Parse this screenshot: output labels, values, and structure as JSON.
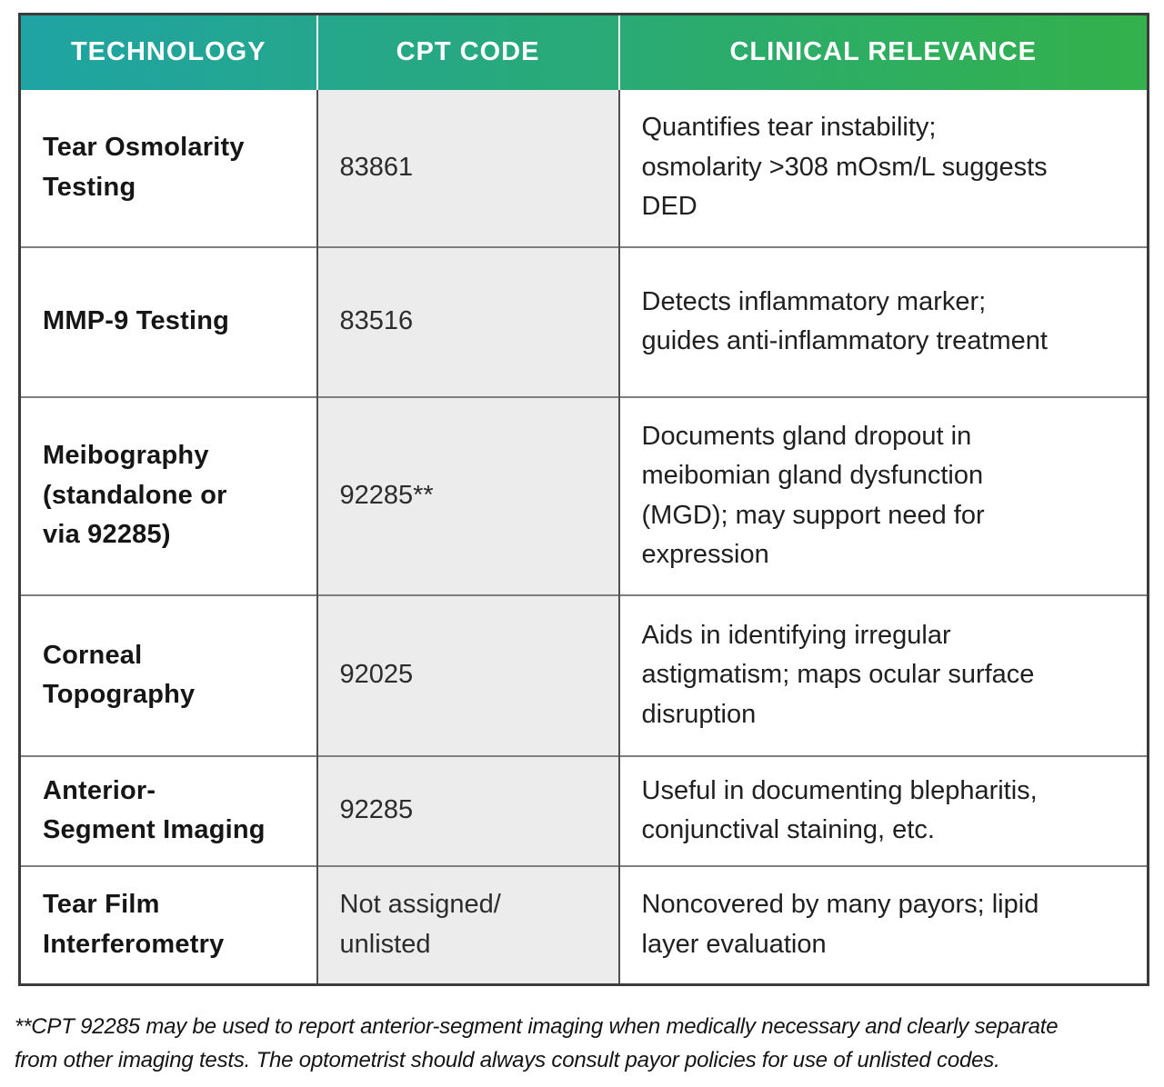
{
  "table": {
    "columns": [
      "TECHNOLOGY",
      "CPT CODE",
      "CLINICAL RELEVANCE"
    ],
    "rows": [
      {
        "technology": "Tear Osmolarity\nTesting",
        "cpt_code": "83861",
        "clinical_relevance": "Quantifies tear instability;\nosmolarity >308 mOsm/L suggests\nDED"
      },
      {
        "technology": "MMP-9 Testing",
        "cpt_code": "83516",
        "clinical_relevance": "Detects inflammatory marker;\nguides anti-inflammatory treatment"
      },
      {
        "technology": "Meibography\n(standalone or\nvia 92285)",
        "cpt_code": "92285**",
        "clinical_relevance": "Documents gland dropout in\nmeibomian gland dysfunction\n(MGD); may support need for\nexpression"
      },
      {
        "technology": "Corneal\nTopography",
        "cpt_code": "92025",
        "clinical_relevance": "Aids in identifying irregular\nastigmatism; maps ocular surface\ndisruption"
      },
      {
        "technology": "Anterior-\nSegment Imaging",
        "cpt_code": "92285",
        "clinical_relevance": "Useful in documenting blepharitis,\nconjunctival staining, etc."
      },
      {
        "technology": "Tear Film\nInterferometry",
        "cpt_code": "Not assigned/\nunlisted",
        "clinical_relevance": "Noncovered by many payors; lipid\nlayer evaluation"
      }
    ]
  },
  "footnote": "**CPT 92285 may be used to report anterior-segment imaging when medically necessary and clearly separate\nfrom other imaging tests. The optometrist should always consult payor policies for use of unlisted codes.",
  "colors": {
    "header_gradient_start": "#1fa3a4",
    "header_gradient_end": "#33b14b",
    "header_text": "#ffffff",
    "cpt_column_bg": "#ececec",
    "outer_border": "#3b3b3b",
    "row_border": "#7f7f7f",
    "column_border": "#4f4f4f",
    "body_text": "#1c1c1c"
  },
  "chart_data": {
    "type": "table",
    "title": "",
    "columns": [
      "TECHNOLOGY",
      "CPT CODE",
      "CLINICAL RELEVANCE"
    ],
    "rows": [
      [
        "Tear Osmolarity Testing",
        "83861",
        "Quantifies tear instability; osmolarity >308 mOsm/L suggests DED"
      ],
      [
        "MMP-9 Testing",
        "83516",
        "Detects inflammatory marker; guides anti-inflammatory treatment"
      ],
      [
        "Meibography (standalone or via 92285)",
        "92285**",
        "Documents gland dropout in meibomian gland dysfunction (MGD); may support need for expression"
      ],
      [
        "Corneal Topography",
        "92025",
        "Aids in identifying irregular astigmatism; maps ocular surface disruption"
      ],
      [
        "Anterior-Segment Imaging",
        "92285",
        "Useful in documenting blepharitis, conjunctival staining, etc."
      ],
      [
        "Tear Film Interferometry",
        "Not assigned/unlisted",
        "Noncovered by many payors; lipid layer evaluation"
      ]
    ],
    "footnote": "**CPT 92285 may be used to report anterior-segment imaging when medically necessary and clearly separate from other imaging tests. The optometrist should always consult payor policies for use of unlisted codes."
  }
}
